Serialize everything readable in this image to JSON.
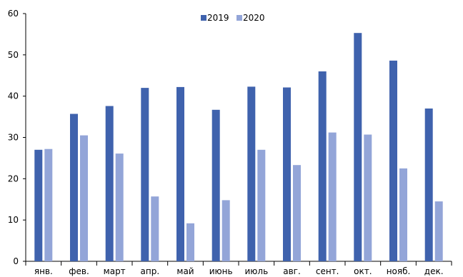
{
  "chart_data": {
    "type": "bar",
    "title": "",
    "xlabel": "",
    "ylabel": "",
    "ylim": [
      0,
      60
    ],
    "yticks": [
      "0",
      "10",
      "20",
      "30",
      "40",
      "50",
      "60"
    ],
    "grid": false,
    "legend_position": "top-center",
    "categories": [
      "янв.",
      "фев.",
      "март",
      "апр.",
      "май",
      "июнь",
      "июль",
      "авг.",
      "сент.",
      "окт.",
      "нояб.",
      "дек."
    ],
    "series": [
      {
        "name": "2019",
        "color": "#3f62ad",
        "values": [
          27.0,
          35.7,
          37.6,
          42.0,
          42.2,
          36.7,
          42.3,
          42.1,
          46.0,
          55.3,
          48.6,
          37.0
        ]
      },
      {
        "name": "2020",
        "color": "#93a5d8",
        "values": [
          27.2,
          30.5,
          26.1,
          15.7,
          9.2,
          14.8,
          27.0,
          23.3,
          31.2,
          30.7,
          22.5,
          14.5
        ]
      }
    ]
  }
}
